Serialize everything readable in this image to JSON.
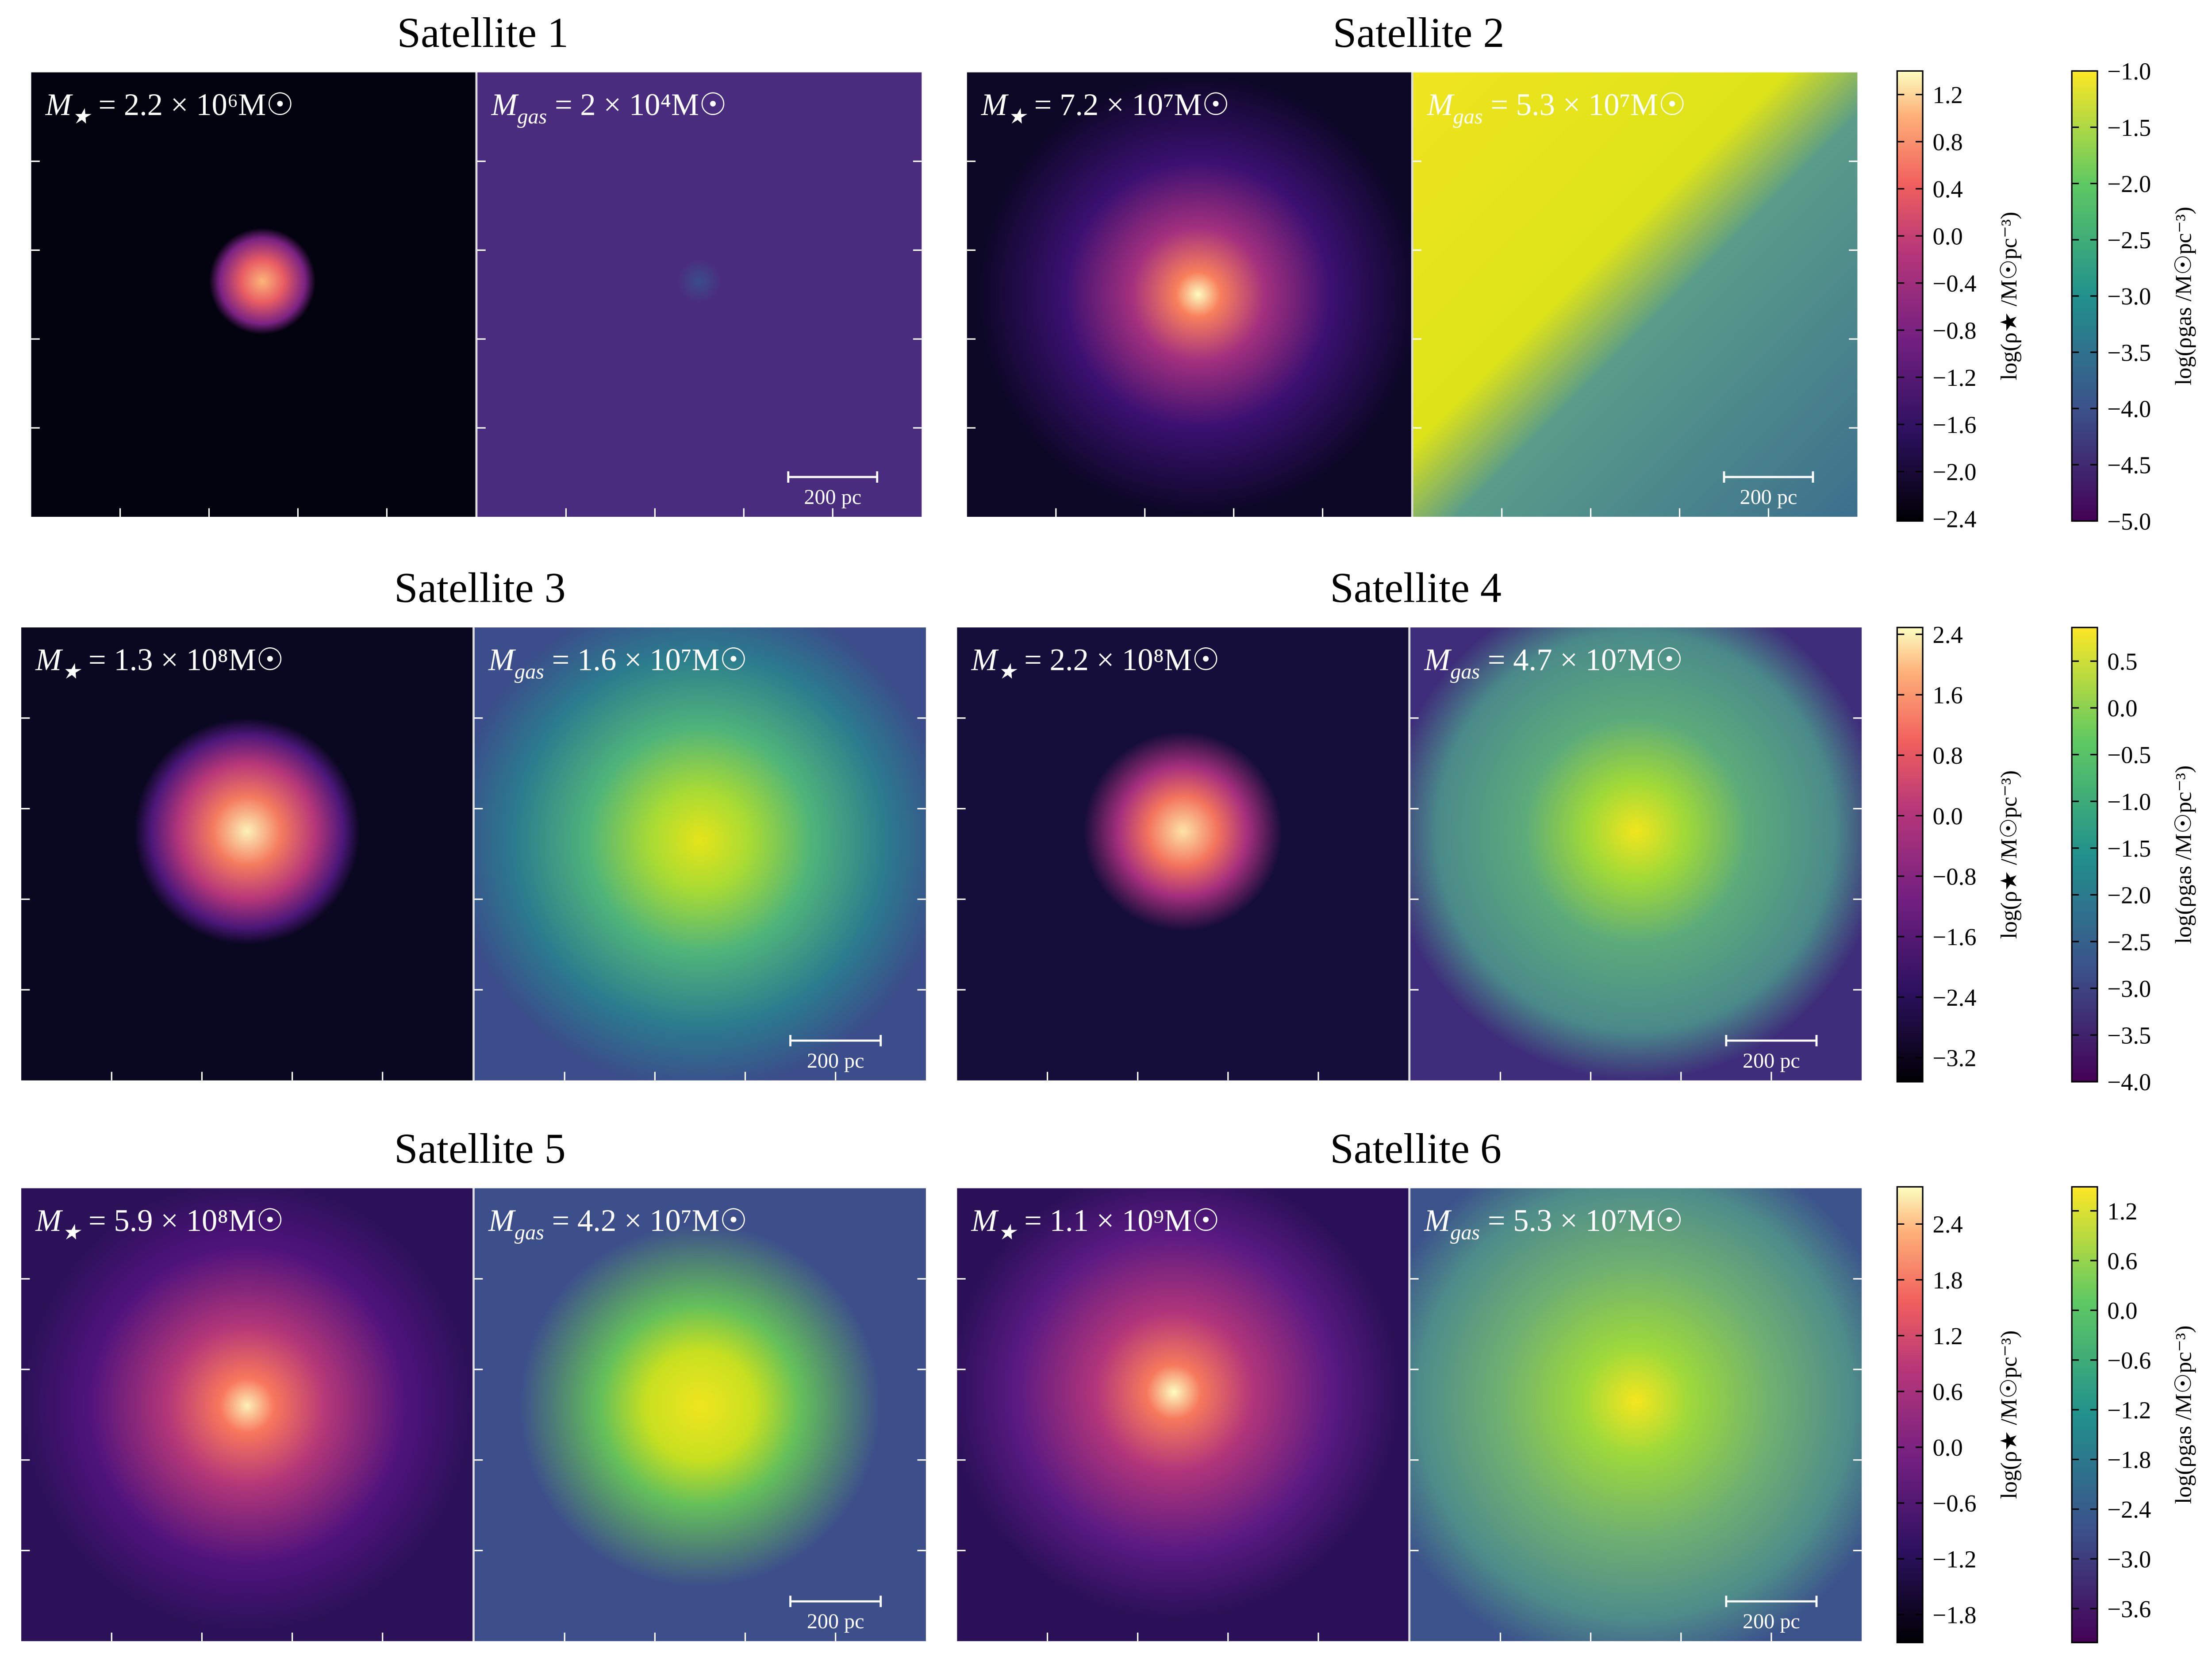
{
  "rows": [
    {
      "panels": [
        {
          "title": "Satellite 1",
          "stellar_label": {
            "symbol": "M",
            "sub": "★",
            "text": " = 2.2 × 10⁶M☉"
          },
          "gas_label": {
            "symbol": "M",
            "sub": "gas",
            "text": " = 2 × 10⁴M☉"
          },
          "scale_bar": "200 pc"
        },
        {
          "title": "Satellite 2",
          "stellar_label": {
            "symbol": "M",
            "sub": "★",
            "text": " = 7.2 × 10⁷M☉"
          },
          "gas_label": {
            "symbol": "M",
            "sub": "gas",
            "text": " = 5.3 × 10⁷M☉"
          },
          "scale_bar": "200 pc"
        }
      ],
      "stellar_colorbar": {
        "label": "log(ρ★ /M☉pc⁻³)",
        "lim": [
          -2.42,
          1.4
        ],
        "ticks": [
          1.2,
          0.8,
          0.4,
          {
            "value": 0,
            "label": "0.0"
          },
          {
            "value": -0.4,
            "label": "−0.4"
          },
          {
            "value": -0.8,
            "label": "−0.8"
          },
          {
            "value": -1.2,
            "label": "−1.2"
          },
          {
            "value": -1.6,
            "label": "−1.6"
          },
          {
            "value": -2.0,
            "label": "−2.0"
          },
          {
            "value": -2.4,
            "label": "−2.4"
          }
        ]
      },
      "gas_colorbar": {
        "label": "log(ρgas /M☉pc⁻³)",
        "lim": [
          -5.0,
          -1.0
        ],
        "ticks": [
          {
            "value": -1.0,
            "label": "−1.0"
          },
          {
            "value": -1.5,
            "label": "−1.5"
          },
          {
            "value": -2.0,
            "label": "−2.0"
          },
          {
            "value": -2.5,
            "label": "−2.5"
          },
          {
            "value": -3.0,
            "label": "−3.0"
          },
          {
            "value": -3.5,
            "label": "−3.5"
          },
          {
            "value": -4.0,
            "label": "−4.0"
          },
          {
            "value": -4.5,
            "label": "−4.5"
          },
          {
            "value": -5.0,
            "label": "−5.0"
          }
        ]
      }
    },
    {
      "panels": [
        {
          "title": "Satellite 3",
          "stellar_label": {
            "symbol": "M",
            "sub": "★",
            "text": " = 1.3 × 10⁸M☉"
          },
          "gas_label": {
            "symbol": "M",
            "sub": "gas",
            "text": " = 1.6 × 10⁷M☉"
          },
          "scale_bar": "200 pc"
        },
        {
          "title": "Satellite 4",
          "stellar_label": {
            "symbol": "M",
            "sub": "★",
            "text": " = 2.2 × 10⁸M☉"
          },
          "gas_label": {
            "symbol": "M",
            "sub": "gas",
            "text": " = 4.7 × 10⁷M☉"
          },
          "scale_bar": "200 pc"
        }
      ],
      "stellar_colorbar": {
        "label": "log(ρ★ /M☉pc⁻³)",
        "lim": [
          -3.52,
          2.49
        ],
        "ticks": [
          2.4,
          1.6,
          0.8,
          {
            "value": 0,
            "label": "0.0"
          },
          {
            "value": -0.8,
            "label": "−0.8"
          },
          {
            "value": -1.6,
            "label": "−1.6"
          },
          {
            "value": -2.4,
            "label": "−2.4"
          },
          {
            "value": -3.2,
            "label": "−3.2"
          }
        ]
      },
      "gas_colorbar": {
        "label": "log(ρgas /M☉pc⁻³)",
        "lim": [
          -4.0,
          0.86
        ],
        "ticks": [
          0.5,
          {
            "value": 0,
            "label": "0.0"
          },
          {
            "value": -0.5,
            "label": "−0.5"
          },
          {
            "value": -1.0,
            "label": "−1.0"
          },
          {
            "value": -1.5,
            "label": "−1.5"
          },
          {
            "value": -2.0,
            "label": "−2.0"
          },
          {
            "value": -2.5,
            "label": "−2.5"
          },
          {
            "value": -3.0,
            "label": "−3.0"
          },
          {
            "value": -3.5,
            "label": "−3.5"
          },
          {
            "value": -4.0,
            "label": "−4.0"
          }
        ]
      }
    },
    {
      "panels": [
        {
          "title": "Satellite 5",
          "stellar_label": {
            "symbol": "M",
            "sub": "★",
            "text": " = 5.9 × 10⁸M☉"
          },
          "gas_label": {
            "symbol": "M",
            "sub": "gas",
            "text": " = 4.2 × 10⁷M☉"
          },
          "scale_bar": "200 pc"
        },
        {
          "title": "Satellite 6",
          "stellar_label": {
            "symbol": "M",
            "sub": "★",
            "text": " = 1.1 × 10⁹M☉"
          },
          "gas_label": {
            "symbol": "M",
            "sub": "gas",
            "text": " = 5.3 × 10⁷M☉"
          },
          "scale_bar": "200 pc"
        }
      ],
      "stellar_colorbar": {
        "label": "log(ρ★ /M☉pc⁻³)",
        "lim": [
          -2.1,
          2.8
        ],
        "ticks": [
          2.4,
          1.8,
          1.2,
          0.6,
          {
            "value": 0,
            "label": "0.0"
          },
          {
            "value": -0.6,
            "label": "−0.6"
          },
          {
            "value": -1.2,
            "label": "−1.2"
          },
          {
            "value": -1.8,
            "label": "−1.8"
          }
        ]
      },
      "gas_colorbar": {
        "label": "log(ρgas /M☉pc⁻³)",
        "lim": [
          -4.01,
          1.49
        ],
        "ticks": [
          1.2,
          0.6,
          {
            "value": 0,
            "label": "0.0"
          },
          {
            "value": -0.6,
            "label": "−0.6"
          },
          {
            "value": -1.2,
            "label": "−1.2"
          },
          {
            "value": -1.8,
            "label": "−1.8"
          },
          {
            "value": -2.4,
            "label": "−2.4"
          },
          {
            "value": -3.0,
            "label": "−3.0"
          },
          {
            "value": -3.6,
            "label": "−3.6"
          }
        ]
      }
    }
  ]
}
